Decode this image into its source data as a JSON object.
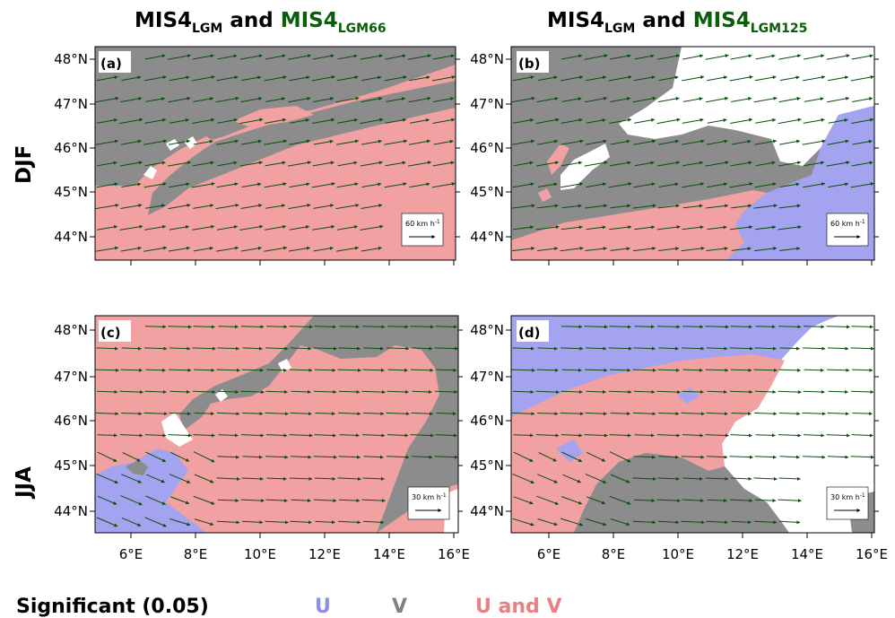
{
  "columns": [
    {
      "prefix": "MIS4",
      "prefix_sub": "LGM",
      "middle": " and ",
      "exp": "MIS4",
      "exp_sub": "LGM66"
    },
    {
      "prefix": "MIS4",
      "prefix_sub": "LGM",
      "middle": " and ",
      "exp": "MIS4",
      "exp_sub": "LGM125"
    }
  ],
  "rows": [
    "DJF",
    "JJA"
  ],
  "lat_labels": [
    "48°N",
    "47°N",
    "46°N",
    "45°N",
    "44°N"
  ],
  "lon_labels": [
    "6°E",
    "8°E",
    "10°E",
    "12°E",
    "14°E",
    "16°E"
  ],
  "panels": [
    {
      "label": "(a)",
      "ref_value": "60 km h",
      "ref_exp": "-1"
    },
    {
      "label": "(b)",
      "ref_value": "60 km h",
      "ref_exp": "-1"
    },
    {
      "label": "(c)",
      "ref_value": "30 km h",
      "ref_exp": "-1"
    },
    {
      "label": "(d)",
      "ref_value": "30 km h",
      "ref_exp": "-1"
    }
  ],
  "legend": {
    "title": "Significant (0.05)",
    "items": [
      {
        "label": "U",
        "color": "#8c8ceb"
      },
      {
        "label": "V",
        "color": "#808080"
      },
      {
        "label": "U and V",
        "color": "#e88282"
      }
    ]
  },
  "colors": {
    "u": "#a3a3ef",
    "v": "#8c8c8c",
    "uv": "#f1a1a1",
    "none": "#ffffff",
    "arrow": "#0b4d0b"
  }
}
